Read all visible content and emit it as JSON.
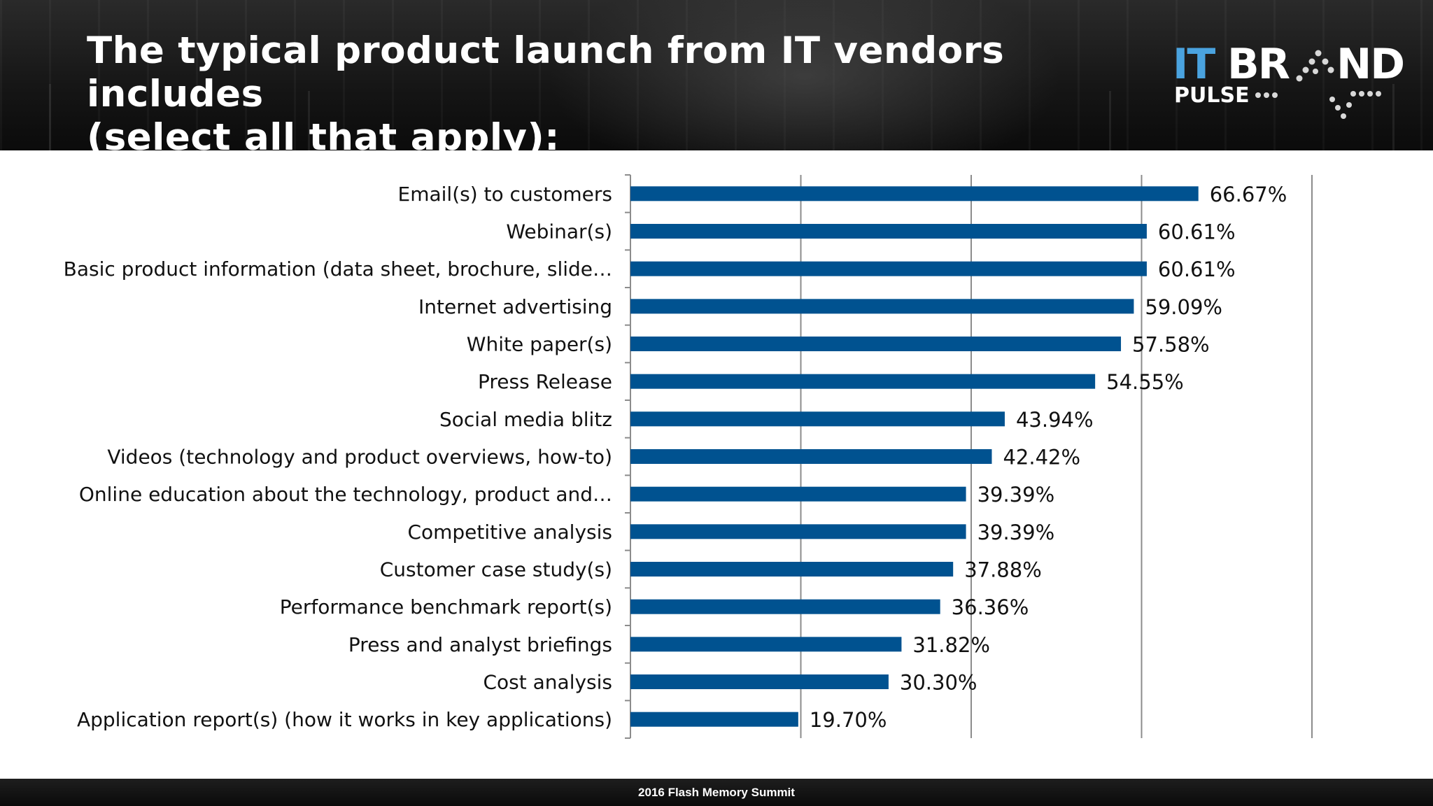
{
  "header": {
    "title_line1": "The typical product launch from IT vendors includes",
    "title_line2": "(select all that apply):"
  },
  "logo": {
    "it": "IT",
    "br": "BR",
    "nd": "ND",
    "pulse": "PULSE",
    "it_color": "#4aa3df",
    "text_color": "#ffffff"
  },
  "chart_data": {
    "type": "bar",
    "orientation": "horizontal",
    "categories": [
      "Email(s) to customers",
      "Webinar(s)",
      "Basic product information (data sheet, brochure, slide…",
      "Internet advertising",
      "White paper(s)",
      "Press Release",
      "Social media blitz",
      "Videos (technology and product overviews, how-to)",
      "Online education about the technology, product and…",
      "Competitive analysis",
      "Customer case study(s)",
      "Performance benchmark report(s)",
      "Press and analyst briefings",
      "Cost analysis",
      "Application report(s) (how it works in key applications)"
    ],
    "values": [
      66.67,
      60.61,
      60.61,
      59.09,
      57.58,
      54.55,
      43.94,
      42.42,
      39.39,
      39.39,
      37.88,
      36.36,
      31.82,
      30.3,
      19.7
    ],
    "data_labels": [
      "66.67%",
      "60.61%",
      "60.61%",
      "59.09%",
      "57.58%",
      "54.55%",
      "43.94%",
      "42.42%",
      "39.39%",
      "39.39%",
      "37.88%",
      "36.36%",
      "31.82%",
      "30.30%",
      "19.70%"
    ],
    "xlim": [
      0,
      80
    ],
    "gridlines_at": [
      20,
      40,
      60,
      80
    ],
    "grid": true,
    "bar_color": "#005290",
    "title": "",
    "xlabel": "",
    "ylabel": ""
  },
  "footer": {
    "text": "2016 Flash Memory Summit"
  }
}
